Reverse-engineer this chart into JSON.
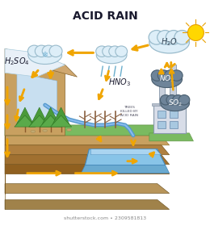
{
  "title": "ACID RAIN",
  "title_fontsize": 10,
  "title_fontweight": "bold",
  "bg_color": "#ffffff",
  "arrow_color": "#F0A500",
  "sun_color": "#FFD700",
  "cloud_white": "#ddeef8",
  "cloud_white_outline": "#99bbcc",
  "cloud_dark": "#6e8499",
  "cloud_dark_outline": "#4a5f70",
  "shutterstock_text": "shutterstock.com • 2309581813",
  "shutterstock_fontsize": 4.5
}
